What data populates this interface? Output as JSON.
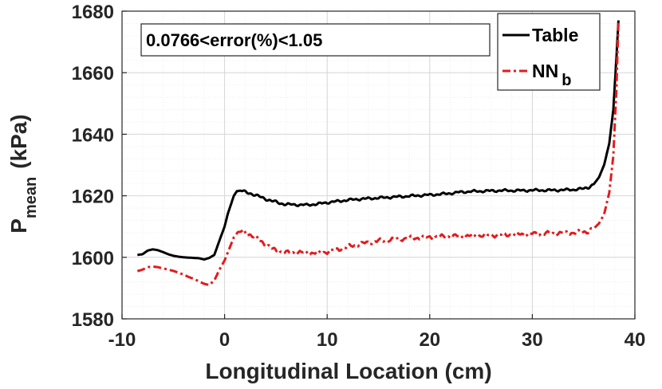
{
  "chart_data": {
    "type": "line",
    "xlabel": "Longitudinal Location (cm)",
    "ylabel": {
      "main": "P",
      "subscript": "mean",
      "unit": "(kPa)"
    },
    "xlim": [
      -10,
      40
    ],
    "ylim": [
      1580,
      1680
    ],
    "xticks": [
      -10,
      0,
      10,
      20,
      30,
      40
    ],
    "yticks": [
      1580,
      1600,
      1620,
      1640,
      1660,
      1680
    ],
    "xtick_labels": [
      "-10",
      "0",
      "10",
      "20",
      "30",
      "40"
    ],
    "ytick_labels": [
      "1580",
      "1600",
      "1620",
      "1640",
      "1660",
      "1680"
    ],
    "grid": true,
    "legend_position": "top-right",
    "annotation": "0.0766<error(%)<1.05",
    "series": [
      {
        "name": "Table",
        "color": "#000000",
        "style": "solid",
        "points": [
          [
            -8.5,
            1600.8
          ],
          [
            -8.0,
            1601.0
          ],
          [
            -7.5,
            1602.2
          ],
          [
            -7.0,
            1602.6
          ],
          [
            -6.5,
            1602.3
          ],
          [
            -6.0,
            1601.7
          ],
          [
            -5.5,
            1601.0
          ],
          [
            -5.0,
            1600.5
          ],
          [
            -4.5,
            1600.2
          ],
          [
            -4.0,
            1600.0
          ],
          [
            -3.5,
            1599.9
          ],
          [
            -3.0,
            1599.8
          ],
          [
            -2.5,
            1599.7
          ],
          [
            -2.0,
            1599.3
          ],
          [
            -1.5,
            1599.8
          ],
          [
            -1.0,
            1600.8
          ],
          [
            -0.5,
            1605.5
          ],
          [
            0.0,
            1610.0
          ],
          [
            0.3,
            1614.0
          ],
          [
            0.6,
            1617.0
          ],
          [
            0.9,
            1620.0
          ],
          [
            1.2,
            1621.5
          ],
          [
            1.6,
            1621.7
          ],
          [
            2.0,
            1621.2
          ],
          [
            2.5,
            1620.8
          ],
          [
            3.0,
            1620.2
          ],
          [
            3.5,
            1619.6
          ],
          [
            4.0,
            1619.0
          ],
          [
            4.5,
            1618.4
          ],
          [
            5.0,
            1618.0
          ],
          [
            5.5,
            1617.5
          ],
          [
            6.0,
            1617.2
          ],
          [
            7.0,
            1617.1
          ],
          [
            8.0,
            1617.0
          ],
          [
            9.0,
            1617.3
          ],
          [
            10.0,
            1617.8
          ],
          [
            11.0,
            1618.2
          ],
          [
            12.0,
            1618.6
          ],
          [
            13.0,
            1618.9
          ],
          [
            14.0,
            1619.1
          ],
          [
            15.0,
            1619.3
          ],
          [
            16.0,
            1619.5
          ],
          [
            17.0,
            1619.7
          ],
          [
            18.0,
            1619.9
          ],
          [
            19.0,
            1620.1
          ],
          [
            20.0,
            1620.3
          ],
          [
            21.0,
            1620.5
          ],
          [
            22.0,
            1620.8
          ],
          [
            23.0,
            1621.2
          ],
          [
            24.0,
            1621.4
          ],
          [
            25.0,
            1621.5
          ],
          [
            26.0,
            1621.6
          ],
          [
            27.0,
            1621.7
          ],
          [
            28.0,
            1621.7
          ],
          [
            29.0,
            1621.7
          ],
          [
            30.0,
            1621.8
          ],
          [
            31.0,
            1621.8
          ],
          [
            32.0,
            1621.8
          ],
          [
            33.0,
            1621.9
          ],
          [
            34.0,
            1622.0
          ],
          [
            35.0,
            1622.3
          ],
          [
            35.5,
            1622.8
          ],
          [
            36.0,
            1623.8
          ],
          [
            36.5,
            1626.0
          ],
          [
            37.0,
            1630.0
          ],
          [
            37.5,
            1637.0
          ],
          [
            37.9,
            1648.0
          ],
          [
            38.2,
            1665.0
          ],
          [
            38.4,
            1677.0
          ]
        ]
      },
      {
        "name": "NN_b",
        "color": "#e41a1c",
        "style": "dashdot",
        "points": [
          [
            -8.5,
            1595.5
          ],
          [
            -8.0,
            1596.0
          ],
          [
            -7.5,
            1596.8
          ],
          [
            -7.0,
            1597.0
          ],
          [
            -6.5,
            1596.8
          ],
          [
            -6.0,
            1596.4
          ],
          [
            -5.5,
            1596.0
          ],
          [
            -5.0,
            1595.6
          ],
          [
            -4.5,
            1595.0
          ],
          [
            -4.0,
            1594.4
          ],
          [
            -3.5,
            1593.6
          ],
          [
            -3.0,
            1593.0
          ],
          [
            -2.5,
            1592.2
          ],
          [
            -2.0,
            1591.4
          ],
          [
            -1.5,
            1591.0
          ],
          [
            -1.0,
            1592.5
          ],
          [
            -0.5,
            1596.0
          ],
          [
            0.0,
            1599.0
          ],
          [
            0.3,
            1601.5
          ],
          [
            0.6,
            1604.0
          ],
          [
            0.9,
            1606.5
          ],
          [
            1.3,
            1608.2
          ],
          [
            1.8,
            1608.4
          ],
          [
            2.2,
            1607.8
          ],
          [
            2.6,
            1607.2
          ],
          [
            3.0,
            1606.4
          ],
          [
            3.5,
            1605.4
          ],
          [
            4.0,
            1604.2
          ],
          [
            4.5,
            1603.0
          ],
          [
            5.0,
            1602.2
          ],
          [
            5.5,
            1601.8
          ],
          [
            6.0,
            1601.5
          ],
          [
            7.0,
            1601.6
          ],
          [
            8.0,
            1601.5
          ],
          [
            9.0,
            1601.4
          ],
          [
            10.0,
            1601.8
          ],
          [
            11.0,
            1602.6
          ],
          [
            12.0,
            1603.4
          ],
          [
            13.0,
            1604.2
          ],
          [
            14.0,
            1604.8
          ],
          [
            15.0,
            1605.3
          ],
          [
            16.0,
            1605.7
          ],
          [
            17.0,
            1606.0
          ],
          [
            18.0,
            1606.2
          ],
          [
            19.0,
            1606.4
          ],
          [
            20.0,
            1606.5
          ],
          [
            21.0,
            1606.7
          ],
          [
            22.0,
            1606.8
          ],
          [
            23.0,
            1606.9
          ],
          [
            24.0,
            1607.0
          ],
          [
            25.0,
            1607.1
          ],
          [
            26.0,
            1607.2
          ],
          [
            27.0,
            1607.3
          ],
          [
            28.0,
            1607.4
          ],
          [
            29.0,
            1607.5
          ],
          [
            30.0,
            1607.6
          ],
          [
            31.0,
            1607.7
          ],
          [
            32.0,
            1607.8
          ],
          [
            33.0,
            1607.9
          ],
          [
            34.0,
            1608.0
          ],
          [
            35.0,
            1608.2
          ],
          [
            35.5,
            1608.6
          ],
          [
            36.0,
            1609.4
          ],
          [
            36.5,
            1611.0
          ],
          [
            37.0,
            1614.0
          ],
          [
            37.5,
            1621.0
          ],
          [
            37.9,
            1633.0
          ],
          [
            38.2,
            1655.0
          ],
          [
            38.4,
            1677.0
          ]
        ]
      }
    ]
  },
  "legend": {
    "items": [
      {
        "label": "Table",
        "subscript": ""
      },
      {
        "label": "NN",
        "subscript": "b"
      }
    ]
  }
}
